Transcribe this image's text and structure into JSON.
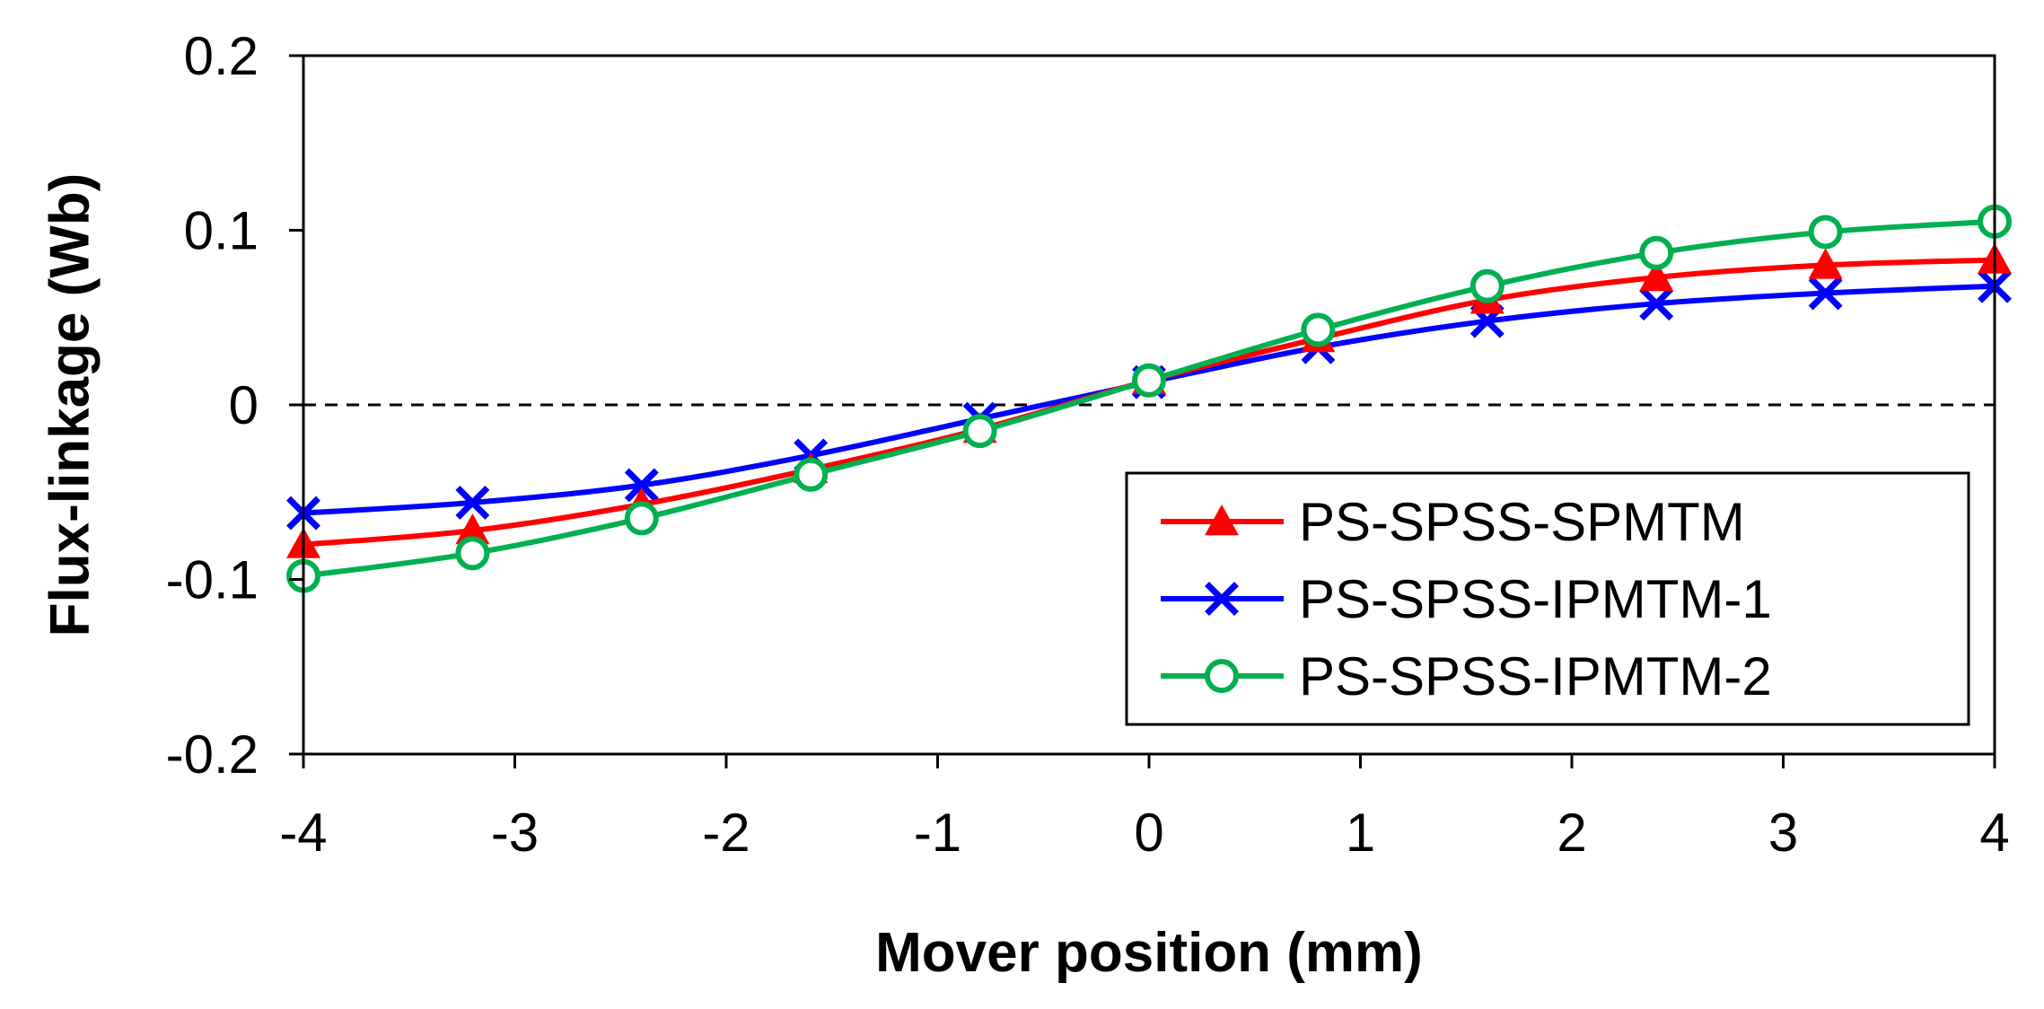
{
  "chart_data": {
    "type": "line",
    "xlabel": "Mover position (mm)",
    "ylabel": "Flux-linkage (Wb)",
    "xlim": [
      -4,
      4
    ],
    "ylim": [
      -0.2,
      0.2
    ],
    "xticks": [
      -4,
      -3,
      -2,
      -1,
      0,
      1,
      2,
      3,
      4
    ],
    "yticks": [
      0.2,
      0.1,
      0,
      -0.1,
      -0.2
    ],
    "xtick_labels": [
      "-4",
      "-3",
      "-2",
      "-1",
      "0",
      "1",
      "2",
      "3",
      "4"
    ],
    "ytick_labels": [
      "0.2",
      "0.1",
      "0",
      "-0.1",
      "-0.2"
    ],
    "grid": false,
    "zero_line": "dashed",
    "legend_position": "bottom-right",
    "x": [
      -4,
      -3.2,
      -2.4,
      -1.6,
      -0.8,
      0,
      0.8,
      1.6,
      2.4,
      3.2,
      4
    ],
    "series": [
      {
        "name": "PS-SPSS-SPMTM",
        "color": "#ff0000",
        "marker": "triangle",
        "values": [
          -0.08,
          -0.072,
          -0.057,
          -0.037,
          -0.014,
          0.014,
          0.038,
          0.06,
          0.073,
          0.08,
          0.083
        ]
      },
      {
        "name": "PS-SPSS-IPMTM-1",
        "color": "#0000ff",
        "marker": "x",
        "values": [
          -0.062,
          -0.056,
          -0.046,
          -0.029,
          -0.008,
          0.013,
          0.033,
          0.048,
          0.058,
          0.064,
          0.068
        ]
      },
      {
        "name": "PS-SPSS-IPMTM-2",
        "color": "#00b050",
        "marker": "circle",
        "values": [
          -0.098,
          -0.085,
          -0.065,
          -0.04,
          -0.015,
          0.014,
          0.043,
          0.068,
          0.087,
          0.099,
          0.105
        ]
      }
    ]
  }
}
